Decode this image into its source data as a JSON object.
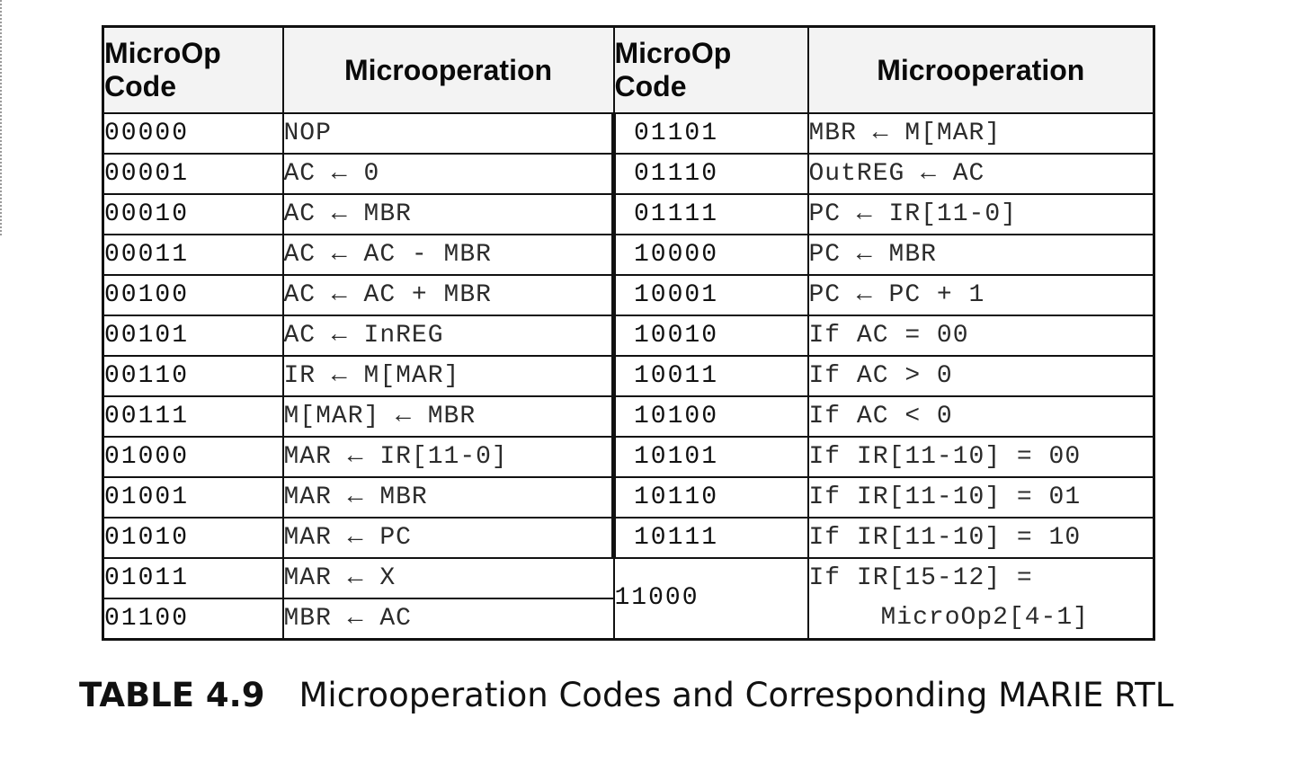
{
  "table": {
    "headers": {
      "code": "MicroOp Code",
      "code_line1": "MicroOp",
      "code_line2": "Code",
      "operation": "Microoperation"
    },
    "left_rows": [
      {
        "code": "00000",
        "op": "NOP"
      },
      {
        "code": "00001",
        "op": "AC ← 0"
      },
      {
        "code": "00010",
        "op": "AC ← MBR"
      },
      {
        "code": "00011",
        "op": "AC ← AC - MBR"
      },
      {
        "code": "00100",
        "op": "AC ← AC + MBR"
      },
      {
        "code": "00101",
        "op": "AC ← InREG"
      },
      {
        "code": "00110",
        "op": "IR ← M[MAR]"
      },
      {
        "code": "00111",
        "op": "M[MAR] ← MBR"
      },
      {
        "code": "01000",
        "op": "MAR ← IR[11-0]"
      },
      {
        "code": "01001",
        "op": "MAR ← MBR"
      },
      {
        "code": "01010",
        "op": "MAR ← PC"
      },
      {
        "code": "01011",
        "op": "MAR ← X"
      },
      {
        "code": "01100",
        "op": "MBR ← AC"
      }
    ],
    "right_rows": [
      {
        "code": "01101",
        "op": "MBR ← M[MAR]"
      },
      {
        "code": "01110",
        "op": "OutREG ← AC"
      },
      {
        "code": "01111",
        "op": "PC ← IR[11-0]"
      },
      {
        "code": "10000",
        "op": "PC ← MBR"
      },
      {
        "code": "10001",
        "op": "PC ← PC + 1"
      },
      {
        "code": "10010",
        "op": "If AC = 00"
      },
      {
        "code": "10011",
        "op": "If AC > 0"
      },
      {
        "code": "10100",
        "op": "If AC < 0"
      },
      {
        "code": "10101",
        "op": "If IR[11-10] = 00"
      },
      {
        "code": "10110",
        "op": "If IR[11-10] = 01"
      },
      {
        "code": "10111",
        "op": "If IR[11-10] = 10"
      },
      {
        "code": "11000",
        "op": "If IR[15-12] =",
        "op_continued": "MicroOp2[4-1]"
      }
    ]
  },
  "caption": {
    "number": "TABLE 4.9",
    "text": "Microoperation Codes and Corresponding MARIE RTL"
  }
}
